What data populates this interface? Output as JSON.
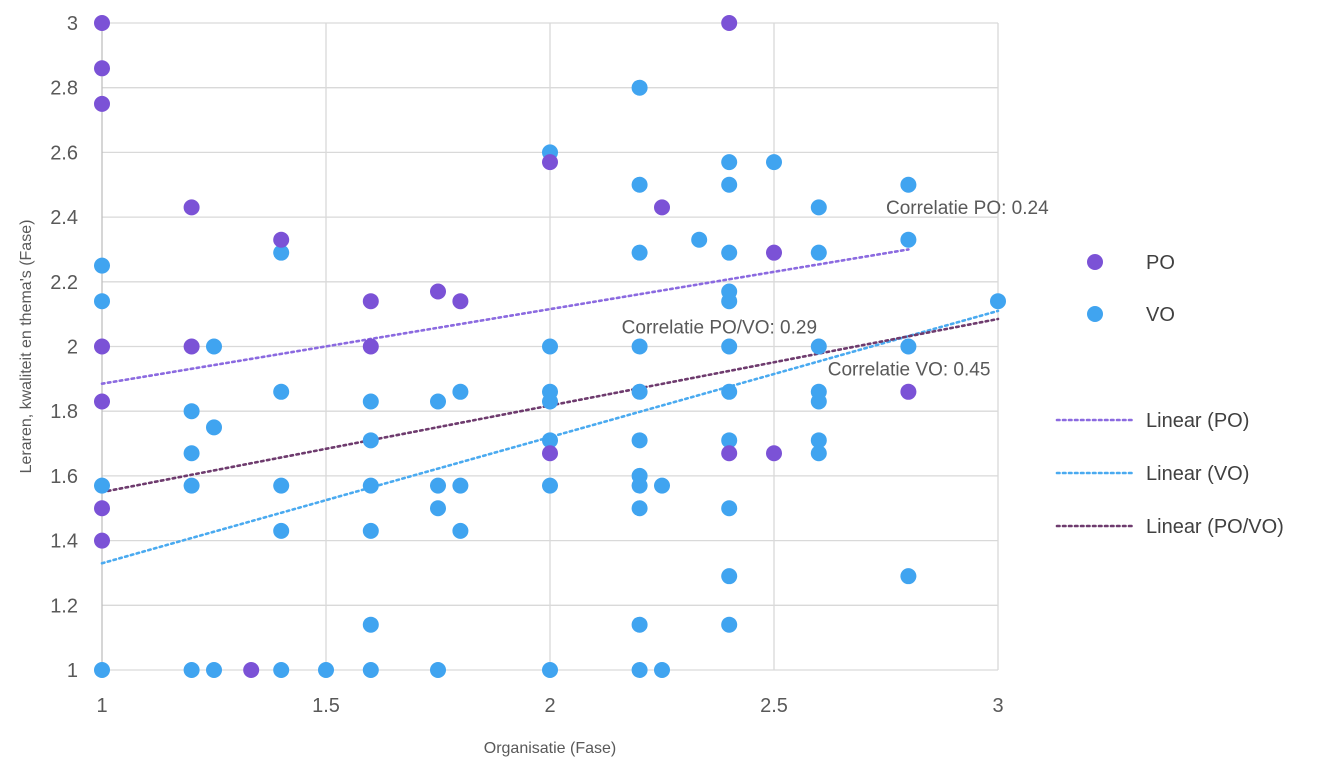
{
  "chart_data": {
    "type": "scatter",
    "title": "",
    "xlabel": "Organisatie (Fase)",
    "ylabel": "Leraren, kwaliteit en thema's (Fase)",
    "xlim": [
      1,
      3
    ],
    "ylim": [
      1,
      3
    ],
    "xticks": [
      1,
      1.5,
      2,
      2.5,
      3
    ],
    "xtick_labels": [
      "1",
      "1.5",
      "2",
      "2.5",
      "3"
    ],
    "yticks": [
      1,
      1.2,
      1.4,
      1.6,
      1.8,
      2,
      2.2,
      2.4,
      2.6,
      2.8,
      3
    ],
    "ytick_labels": [
      "1",
      "1.2",
      "1.4",
      "1.6",
      "1.8",
      "2",
      "2.2",
      "2.4",
      "2.6",
      "2.8",
      "3"
    ],
    "grid": true,
    "legend_position": "right",
    "series": [
      {
        "name": "PO",
        "color": "#7b52d6",
        "points": [
          [
            1,
            3
          ],
          [
            1,
            2.86
          ],
          [
            1,
            2.75
          ],
          [
            1,
            2
          ],
          [
            1,
            1.83
          ],
          [
            1,
            1.5
          ],
          [
            1,
            1.4
          ],
          [
            1.2,
            2.43
          ],
          [
            1.2,
            2
          ],
          [
            1.333,
            1
          ],
          [
            1.4,
            2.33
          ],
          [
            1.6,
            2.14
          ],
          [
            1.6,
            2
          ],
          [
            1.75,
            2.17
          ],
          [
            1.8,
            2.14
          ],
          [
            2,
            2.57
          ],
          [
            2,
            1.67
          ],
          [
            2.25,
            2.43
          ],
          [
            2.4,
            3
          ],
          [
            2.4,
            1.67
          ],
          [
            2.5,
            2.29
          ],
          [
            2.5,
            1.67
          ],
          [
            2.8,
            1.86
          ]
        ]
      },
      {
        "name": "VO",
        "color": "#40a4f0",
        "points": [
          [
            1,
            2.25
          ],
          [
            1,
            2.14
          ],
          [
            1,
            1.57
          ],
          [
            1,
            1
          ],
          [
            1.2,
            1.8
          ],
          [
            1.2,
            1.67
          ],
          [
            1.2,
            1.57
          ],
          [
            1.2,
            1
          ],
          [
            1.25,
            2
          ],
          [
            1.25,
            1.75
          ],
          [
            1.25,
            1
          ],
          [
            1.4,
            2.29
          ],
          [
            1.4,
            1.86
          ],
          [
            1.4,
            1.57
          ],
          [
            1.4,
            1.43
          ],
          [
            1.4,
            1
          ],
          [
            1.5,
            1
          ],
          [
            1.6,
            1.83
          ],
          [
            1.6,
            1.71
          ],
          [
            1.6,
            1.57
          ],
          [
            1.6,
            1.43
          ],
          [
            1.6,
            1.14
          ],
          [
            1.6,
            1
          ],
          [
            1.75,
            1.83
          ],
          [
            1.75,
            1.57
          ],
          [
            1.75,
            1.5
          ],
          [
            1.75,
            1
          ],
          [
            1.8,
            1.86
          ],
          [
            1.8,
            1.57
          ],
          [
            1.8,
            1.43
          ],
          [
            2,
            2.6
          ],
          [
            2,
            2
          ],
          [
            2,
            1.86
          ],
          [
            2,
            1.83
          ],
          [
            2,
            1.71
          ],
          [
            2,
            1.57
          ],
          [
            2,
            1
          ],
          [
            2.2,
            2.8
          ],
          [
            2.2,
            2.5
          ],
          [
            2.2,
            2.29
          ],
          [
            2.2,
            2
          ],
          [
            2.2,
            1.86
          ],
          [
            2.2,
            1.71
          ],
          [
            2.2,
            1.6
          ],
          [
            2.2,
            1.57
          ],
          [
            2.2,
            1.5
          ],
          [
            2.2,
            1.14
          ],
          [
            2.2,
            1
          ],
          [
            2.25,
            1.57
          ],
          [
            2.25,
            1
          ],
          [
            2.333,
            2.33
          ],
          [
            2.4,
            2.57
          ],
          [
            2.4,
            2.5
          ],
          [
            2.4,
            2.29
          ],
          [
            2.4,
            2.17
          ],
          [
            2.4,
            2.14
          ],
          [
            2.4,
            2
          ],
          [
            2.4,
            1.86
          ],
          [
            2.4,
            1.71
          ],
          [
            2.4,
            1.5
          ],
          [
            2.4,
            1.29
          ],
          [
            2.4,
            1.14
          ],
          [
            2.5,
            2.57
          ],
          [
            2.6,
            2.43
          ],
          [
            2.6,
            2.29
          ],
          [
            2.6,
            2
          ],
          [
            2.6,
            1.86
          ],
          [
            2.6,
            1.83
          ],
          [
            2.6,
            1.71
          ],
          [
            2.6,
            1.67
          ],
          [
            2.8,
            2.5
          ],
          [
            2.8,
            2.33
          ],
          [
            2.8,
            2
          ],
          [
            2.8,
            1.29
          ],
          [
            3,
            2.14
          ]
        ]
      }
    ],
    "trendlines": [
      {
        "name": "Linear (PO)",
        "color": "#8b6ae0",
        "x": [
          1,
          2.8
        ],
        "y": [
          1.885,
          2.3
        ]
      },
      {
        "name": "Linear (VO)",
        "color": "#4aaaf0",
        "x": [
          1,
          3
        ],
        "y": [
          1.33,
          2.11
        ]
      },
      {
        "name": "Linear (PO/VO)",
        "color": "#6e3b6e",
        "x": [
          1,
          3
        ],
        "y": [
          1.55,
          2.085
        ]
      }
    ],
    "annotations": [
      {
        "text": "Correlatie PO: 0.24",
        "x": 2.75,
        "y": 2.41
      },
      {
        "text": "Correlatie PO/VO: 0.29",
        "x": 2.16,
        "y": 2.04
      },
      {
        "text": "Correlatie VO: 0.45",
        "x": 2.62,
        "y": 1.91
      }
    ]
  }
}
